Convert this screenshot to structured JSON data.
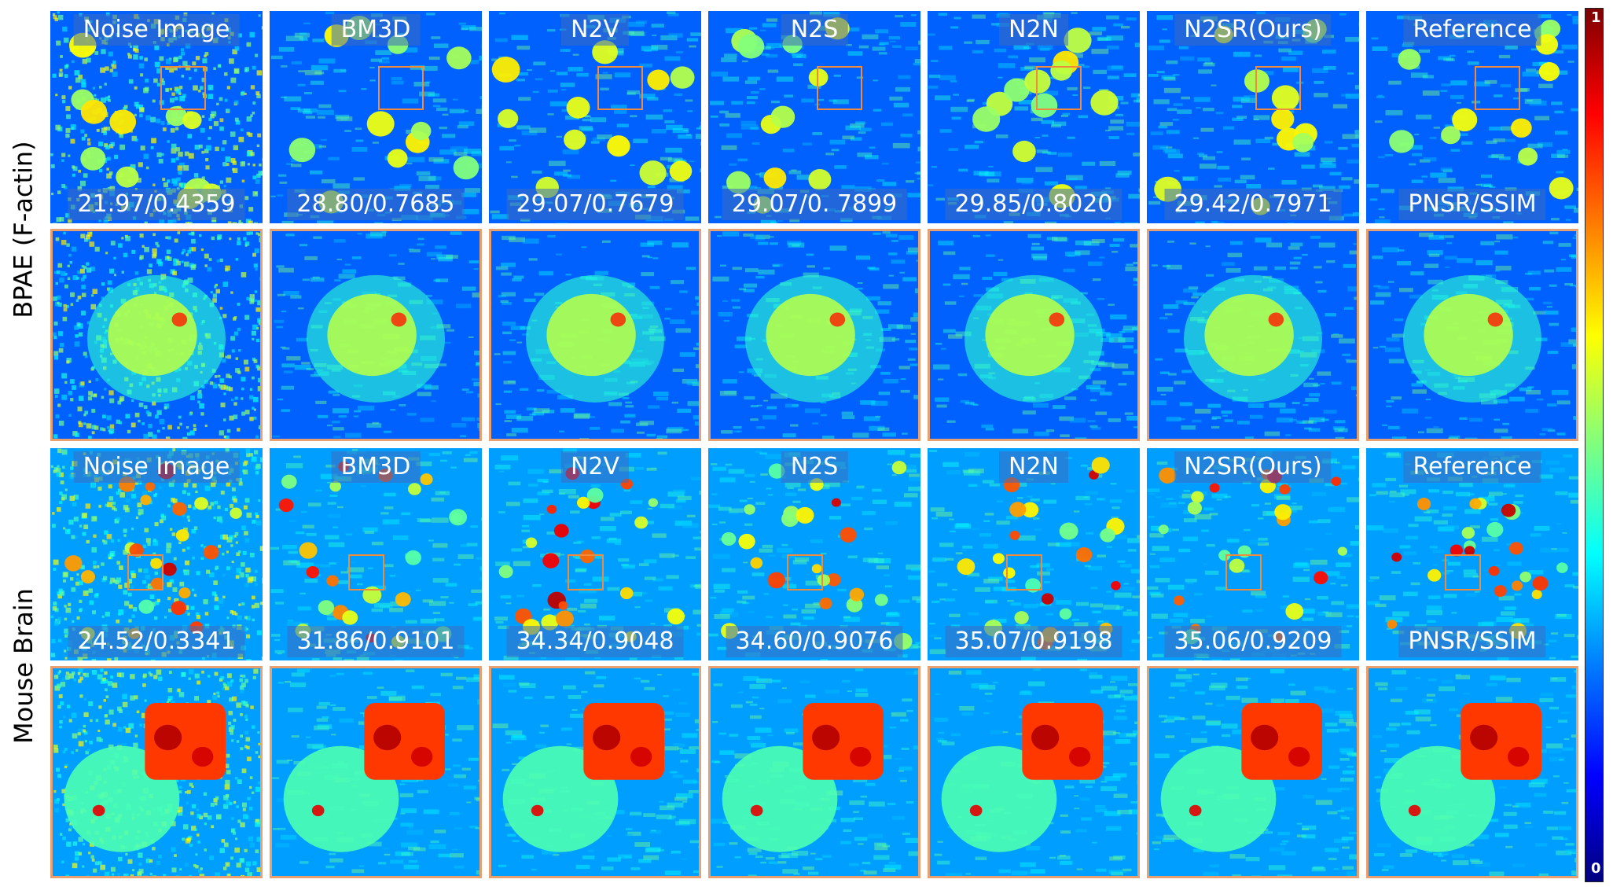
{
  "rows": [
    {
      "label": "BPAE (F-actin)",
      "methods": [
        "Noise Image",
        "BM3D",
        "N2V",
        "N2S",
        "N2N",
        "N2SR(Ours)",
        "Reference"
      ],
      "metrics": [
        "21.97/0.4359",
        "28.80/0.7685",
        "29.07/0.7679",
        "29.07/0. 7899",
        "29.85/0.8020",
        "29.42/0.7971",
        "PNSR/SSIM"
      ]
    },
    {
      "label": "Mouse Brain",
      "methods": [
        "Noise Image",
        "BM3D",
        "N2V",
        "N2S",
        "N2N",
        "N2SR(Ours)",
        "Reference"
      ],
      "metrics": [
        "24.52/0.3341",
        "31.86/0.9101",
        "34.34/0.9048",
        "34.60/0.9076",
        "35.07/0.9198",
        "35.06/0.9209",
        "PNSR/SSIM"
      ]
    }
  ],
  "colorbar": {
    "max_label": "1",
    "min_label": "0",
    "colormap": "jet"
  }
}
